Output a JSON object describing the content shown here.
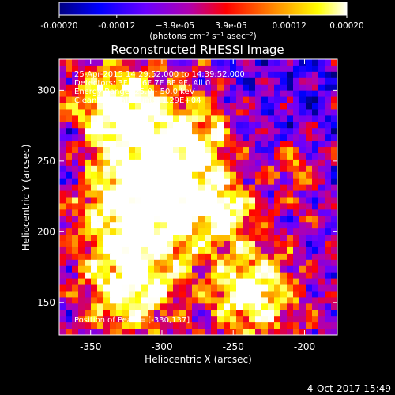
{
  "chart_data": {
    "type": "heatmap",
    "title": "Reconstructed RHESSI Image",
    "xlabel": "Heliocentric X (arcsec)",
    "ylabel": "Heliocentric Y (arcsec)",
    "xlim": [
      -372,
      -177
    ],
    "ylim": [
      127,
      322
    ],
    "x_ticks": [
      -350,
      -300,
      -250,
      -200
    ],
    "x_tick_labels": [
      "-350",
      "-300",
      "-250",
      "-200"
    ],
    "y_ticks": [
      150,
      200,
      250,
      300
    ],
    "y_tick_labels": [
      "150",
      "200",
      "250",
      "300"
    ],
    "colorbar": {
      "range": [
        -0.0002,
        0.0002
      ],
      "ticks": [
        -0.0002,
        -0.00012,
        -3.9e-05,
        3.9e-05,
        0.00012,
        0.0002
      ],
      "tick_labels": [
        "-0.00020",
        "-0.00012",
        "−3.9e-05",
        "3.9e-05",
        "0.00012",
        "0.00020"
      ],
      "units": "(photons cm⁻² s⁻¹ asec⁻²)",
      "colormap": [
        "#000080",
        "#0000ff",
        "#6a00ff",
        "#b000b0",
        "#ff0000",
        "#ff8c00",
        "#ffff00",
        "#ffffff"
      ]
    },
    "annotations": [
      "25-Apr-2015 14:29:52.000 to 14:39:52.000",
      "Detectors: 3F 5F 6F 7F 8F 9F, All 0",
      "Energy Range: 25.0 - 50.0 keV",
      "Clean     Total counts: 1.29E+04"
    ],
    "peak_label": "Position of Peak = [-330,137]",
    "timestamp": "4-Oct-2017 15:49"
  }
}
